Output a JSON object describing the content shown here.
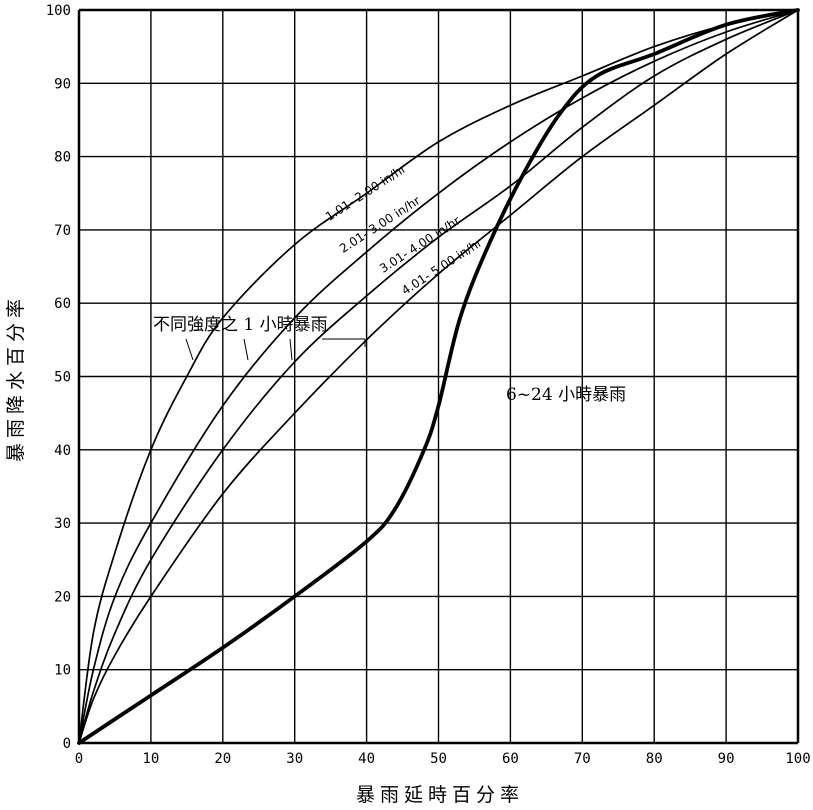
{
  "chart_data": {
    "type": "line",
    "xlabel": "暴雨延時百分率",
    "ylabel": "暴雨降水百分率",
    "xlim": [
      0,
      100
    ],
    "ylim": [
      0,
      100
    ],
    "grid": true,
    "xticks": [
      "0",
      "10",
      "20",
      "30",
      "40",
      "50",
      "60",
      "70",
      "80",
      "90",
      "100"
    ],
    "yticks": [
      "0",
      "10",
      "20",
      "30",
      "40",
      "50",
      "60",
      "70",
      "80",
      "90",
      "100"
    ],
    "series": [
      {
        "name": "1.01- 2.00 in/hr",
        "points": [
          [
            0,
            0
          ],
          [
            2,
            15
          ],
          [
            5,
            26
          ],
          [
            10,
            40
          ],
          [
            15,
            50
          ],
          [
            20,
            58
          ],
          [
            30,
            68
          ],
          [
            40,
            75
          ],
          [
            50,
            82
          ],
          [
            60,
            87
          ],
          [
            70,
            91
          ],
          [
            80,
            95
          ],
          [
            90,
            98
          ],
          [
            100,
            100
          ]
        ]
      },
      {
        "name": "2.01- 3.00 in/hr",
        "points": [
          [
            0,
            0
          ],
          [
            2,
            10
          ],
          [
            5,
            20
          ],
          [
            10,
            30
          ],
          [
            20,
            46
          ],
          [
            30,
            58
          ],
          [
            40,
            67
          ],
          [
            50,
            75
          ],
          [
            60,
            82
          ],
          [
            70,
            88
          ],
          [
            80,
            93
          ],
          [
            90,
            97
          ],
          [
            100,
            100
          ]
        ]
      },
      {
        "name": "3.01- 4.00 in/hr",
        "points": [
          [
            0,
            0
          ],
          [
            2,
            7
          ],
          [
            5,
            15
          ],
          [
            10,
            25
          ],
          [
            20,
            40
          ],
          [
            30,
            52
          ],
          [
            40,
            61
          ],
          [
            50,
            69
          ],
          [
            60,
            76
          ],
          [
            70,
            84
          ],
          [
            80,
            91
          ],
          [
            90,
            96
          ],
          [
            100,
            100
          ]
        ]
      },
      {
        "name": "4.01- 5.00 in/hr",
        "points": [
          [
            0,
            0
          ],
          [
            2,
            6
          ],
          [
            5,
            12
          ],
          [
            10,
            20
          ],
          [
            20,
            34
          ],
          [
            30,
            45
          ],
          [
            40,
            55
          ],
          [
            50,
            64
          ],
          [
            60,
            72
          ],
          [
            70,
            80
          ],
          [
            80,
            87
          ],
          [
            90,
            94
          ],
          [
            100,
            100
          ]
        ]
      },
      {
        "name": "6~24 小時暴雨",
        "points": [
          [
            0,
            0
          ],
          [
            10,
            6.5
          ],
          [
            20,
            13
          ],
          [
            30,
            20
          ],
          [
            40,
            27.5
          ],
          [
            44,
            32
          ],
          [
            48,
            40
          ],
          [
            50,
            46
          ],
          [
            53,
            58
          ],
          [
            57,
            68
          ],
          [
            62,
            78
          ],
          [
            67,
            86
          ],
          [
            72,
            91
          ],
          [
            80,
            94
          ],
          [
            90,
            98
          ],
          [
            100,
            100
          ]
        ]
      }
    ],
    "annotations": [
      "不同強度之 1 小時暴雨",
      "6~24 小時暴雨"
    ]
  }
}
